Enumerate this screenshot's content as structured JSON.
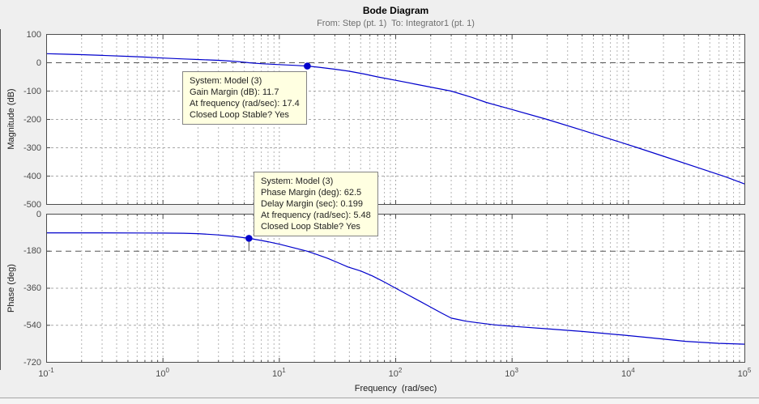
{
  "figure": {
    "title": "Bode Diagram",
    "subtitle": "From: Step (pt. 1)  To: Integrator1 (pt. 1)",
    "xlabel": "Frequency  (rad/sec)",
    "colors": {
      "figure_bg": "#efefef",
      "plot_bg": "#ffffff",
      "border": "#4d4d4d",
      "grid": "#a8a8a8",
      "grid_minor": "#b4b4b4",
      "ref_line": "#555555",
      "curve": "#0000cc",
      "marker": "#0000cc",
      "stem": "#4a4a4a",
      "tooltip_bg": "#ffffe1",
      "tooltip_border": "#848484"
    }
  },
  "xtick_base": "10",
  "xticks": [
    "-1",
    "0",
    "1",
    "2",
    "3",
    "4",
    "5"
  ],
  "chart_data": [
    {
      "type": "line",
      "id": "magnitude",
      "ylabel": "Magnitude (dB)",
      "xlim": [
        0.1,
        100000
      ],
      "ylim": [
        -500,
        100
      ],
      "yticks": [
        100,
        0,
        -100,
        -200,
        -300,
        -400,
        -500
      ],
      "ref_line": 0,
      "grid": true,
      "marker": {
        "freq": 17.4,
        "value": -11.7
      },
      "series": [
        {
          "name": "Model (3)",
          "points": [
            [
              0.1,
              32
            ],
            [
              0.15,
              30
            ],
            [
              0.2,
              28.5
            ],
            [
              0.3,
              26
            ],
            [
              0.5,
              22.5
            ],
            [
              0.7,
              20
            ],
            [
              1,
              16.5
            ],
            [
              1.5,
              13.5
            ],
            [
              2,
              11.5
            ],
            [
              3,
              8.5
            ],
            [
              4,
              5.5
            ],
            [
              5,
              2
            ],
            [
              5.48,
              0
            ],
            [
              7,
              -3.5
            ],
            [
              10,
              -6.5
            ],
            [
              14,
              -9.5
            ],
            [
              17.4,
              -11.7
            ],
            [
              22,
              -16
            ],
            [
              30,
              -23
            ],
            [
              40,
              -30
            ],
            [
              54,
              -40
            ],
            [
              70,
              -50
            ],
            [
              100,
              -62
            ],
            [
              150,
              -76
            ],
            [
              200,
              -86
            ],
            [
              300,
              -100
            ],
            [
              450,
              -122
            ],
            [
              600,
              -140
            ],
            [
              1000,
              -165
            ],
            [
              2000,
              -200
            ],
            [
              4000,
              -238
            ],
            [
              8000,
              -277
            ],
            [
              12000,
              -300
            ],
            [
              20000,
              -330
            ],
            [
              40000,
              -371
            ],
            [
              70000,
              -404
            ],
            [
              100000,
              -428
            ]
          ]
        }
      ]
    },
    {
      "type": "line",
      "id": "phase",
      "ylabel": "Phase (deg)",
      "xlim": [
        0.1,
        100000
      ],
      "ylim": [
        -720,
        0
      ],
      "yticks": [
        0,
        -180,
        -360,
        -540,
        -720
      ],
      "ref_line": -180,
      "grid": true,
      "marker": {
        "freq": 5.48,
        "value": -117.5
      },
      "series": [
        {
          "name": "Model (3)",
          "points": [
            [
              0.1,
              -91
            ],
            [
              0.3,
              -91
            ],
            [
              0.7,
              -91.5
            ],
            [
              1,
              -92
            ],
            [
              1.5,
              -93
            ],
            [
              2,
              -95
            ],
            [
              3,
              -101
            ],
            [
              4,
              -108
            ],
            [
              5.48,
              -117.5
            ],
            [
              7,
              -128
            ],
            [
              8,
              -134
            ],
            [
              10,
              -146
            ],
            [
              13.4,
              -164
            ],
            [
              17.4,
              -180
            ],
            [
              21,
              -196
            ],
            [
              26,
              -215
            ],
            [
              32,
              -236
            ],
            [
              39,
              -257
            ],
            [
              50,
              -276
            ],
            [
              63,
              -300
            ],
            [
              80,
              -330
            ],
            [
              100,
              -360
            ],
            [
              130,
              -395
            ],
            [
              160,
              -422
            ],
            [
              200,
              -452
            ],
            [
              250,
              -482
            ],
            [
              300,
              -505
            ],
            [
              350,
              -513
            ],
            [
              400,
              -520
            ],
            [
              510,
              -528
            ],
            [
              700,
              -538
            ],
            [
              1000,
              -545
            ],
            [
              2000,
              -557
            ],
            [
              4000,
              -570
            ],
            [
              9000,
              -588
            ],
            [
              15000,
              -600
            ],
            [
              31000,
              -618
            ],
            [
              60000,
              -628
            ],
            [
              100000,
              -632
            ]
          ]
        }
      ]
    }
  ],
  "tooltips": [
    {
      "id": "gain-margin",
      "lines": [
        "System: Model (3)",
        "Gain Margin (dB): 11.7",
        "At frequency (rad/sec): 17.4",
        "Closed Loop Stable? Yes"
      ]
    },
    {
      "id": "phase-margin",
      "lines": [
        "System: Model (3)",
        "Phase Margin (deg): 62.5",
        "Delay Margin (sec): 0.199",
        "At frequency (rad/sec): 5.48",
        "Closed Loop Stable? Yes"
      ]
    }
  ]
}
